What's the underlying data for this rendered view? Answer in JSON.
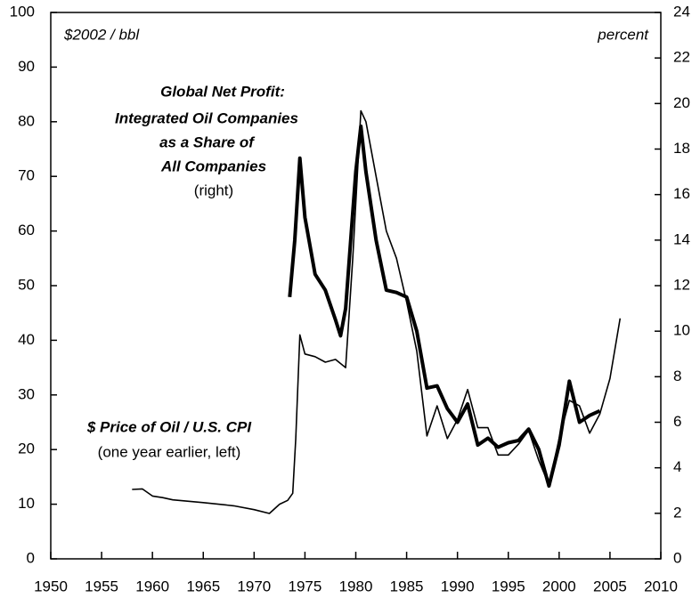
{
  "chart_data": {
    "type": "line",
    "left_axis_label": "$2002 / bbl",
    "right_axis_label": "percent",
    "annotations": [
      {
        "lines": [
          "Global Net Profit:",
          "Integrated Oil Companies",
          "as a Share of",
          "All Companies",
          "(right)"
        ]
      },
      {
        "lines": [
          "$ Price of Oil / U.S. CPI",
          "(one year earlier, left)"
        ]
      }
    ],
    "xlim": [
      1950,
      2010
    ],
    "xticks": [
      1950,
      1955,
      1960,
      1965,
      1970,
      1975,
      1980,
      1985,
      1990,
      1995,
      2000,
      2005,
      2010
    ],
    "ylim": [
      0,
      100
    ],
    "yticks": [
      0,
      10,
      20,
      30,
      40,
      50,
      60,
      70,
      80,
      90,
      100
    ],
    "y2lim": [
      0,
      24
    ],
    "y2ticks": [
      0,
      2,
      4,
      6,
      8,
      10,
      12,
      14,
      16,
      18,
      20,
      22,
      24
    ],
    "series": [
      {
        "name": "$ Price of Oil / U.S. CPI",
        "color": "#000000",
        "axis": "y",
        "x": [
          1958,
          1959,
          1960,
          1961,
          1962,
          1965,
          1968,
          1970,
          1971.5,
          1972.5,
          1973.3,
          1973.8,
          1974.1,
          1974.5,
          1975,
          1976,
          1977,
          1978,
          1979,
          1979.7,
          1980.5,
          1981,
          1982,
          1983,
          1984,
          1985,
          1986,
          1987,
          1988,
          1989,
          1990,
          1991,
          1992,
          1993,
          1994,
          1995,
          1996,
          1997,
          1998,
          1999,
          2000,
          2001,
          2002,
          2003,
          2004,
          2005,
          2006
        ],
        "values": [
          12.7,
          12.8,
          11.5,
          11.2,
          10.8,
          10.3,
          9.7,
          9.0,
          8.3,
          10.0,
          10.7,
          12,
          22,
          41,
          37.5,
          37,
          36,
          36.5,
          35,
          55,
          82,
          80,
          70,
          60,
          55,
          47,
          38,
          22.5,
          28,
          22,
          25.5,
          31,
          24,
          24,
          19,
          19,
          21,
          23.5,
          18,
          13.5,
          22,
          29,
          28,
          23,
          26.5,
          33,
          44
        ]
      },
      {
        "name": "Global Net Profit: Integrated Oil Companies as a Share of All Companies",
        "color": "#000000",
        "axis": "y2",
        "x": [
          1973.5,
          1974,
          1974.5,
          1975,
          1976,
          1977,
          1978,
          1978.5,
          1979,
          1980,
          1980.5,
          1981,
          1982,
          1983,
          1984,
          1985,
          1986,
          1987,
          1988,
          1989,
          1990,
          1991,
          1992,
          1993,
          1994,
          1995,
          1996,
          1997,
          1998,
          1999,
          2000,
          2001,
          2002,
          2003,
          2004
        ],
        "values": [
          11.5,
          14,
          17.6,
          15,
          12.5,
          11.8,
          10.5,
          9.8,
          11,
          17,
          19,
          17,
          14,
          11.8,
          11.7,
          11.5,
          10,
          7.5,
          7.6,
          6.6,
          6,
          6.8,
          5,
          5.3,
          4.9,
          5.1,
          5.2,
          5.7,
          4.8,
          3.2,
          5,
          7.8,
          6,
          6.3,
          6.5
        ]
      }
    ]
  }
}
